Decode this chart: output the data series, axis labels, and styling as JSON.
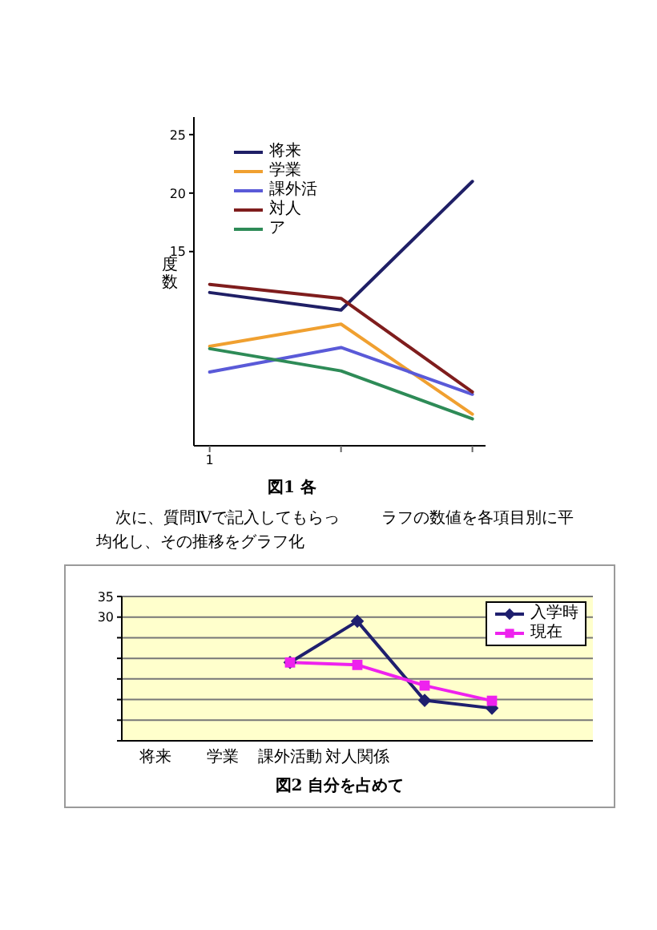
{
  "chart_data": [
    {
      "type": "line",
      "title": "図1 各",
      "ylabel": "度数",
      "categories": [
        "1",
        null,
        null
      ],
      "series": [
        {
          "name": "将来",
          "color": "#1f1f66",
          "values": [
            11.5,
            10,
            21
          ]
        },
        {
          "name": "学業",
          "color": "#f0a030",
          "values": [
            6.9,
            8.8,
            1.1
          ]
        },
        {
          "name": "課外活",
          "color": "#5a5ad8",
          "values": [
            4.7,
            6.8,
            2.8
          ]
        },
        {
          "name": "対人",
          "color": "#7f1d1d",
          "values": [
            12.2,
            11,
            3
          ]
        },
        {
          "name": "ア",
          "color": "#2e8b57",
          "values": [
            6.7,
            4.8,
            0.7
          ]
        }
      ],
      "ylim": [
        -1.6,
        26.5
      ],
      "yticks": [
        15,
        20,
        25
      ],
      "legend": "top left",
      "marker": "none"
    },
    {
      "type": "line",
      "title": "図2 自分を占めて",
      "annotations": [
        "次に、質問Ⅳで記入してもらっ",
        "ラフの数値を各項目別に平",
        "均化し、その推移をグラフ化"
      ],
      "categories": [
        "将来",
        "学業",
        "課外活動",
        "対人関係",
        null,
        null,
        null
      ],
      "series": [
        {
          "name": "入学時",
          "color": "#1f1f6e",
          "marker": "diamond",
          "values": [
            null,
            null,
            19,
            29,
            9.8,
            7.9,
            null
          ]
        },
        {
          "name": "現在",
          "color": "#ee22ee",
          "marker": "square",
          "values": [
            null,
            null,
            19,
            18.4,
            13.4,
            9.7,
            null
          ]
        }
      ],
      "ylim": [
        0,
        35
      ],
      "yticks": [
        {
          "value": 0,
          "label": null
        },
        {
          "value": 5,
          "label": null
        },
        {
          "value": 10,
          "label": null
        },
        {
          "value": 15,
          "label": null
        },
        {
          "value": 20,
          "label": null
        },
        {
          "value": 25,
          "label": null
        },
        30,
        35
      ],
      "grid": "y",
      "legend": "top right"
    }
  ]
}
